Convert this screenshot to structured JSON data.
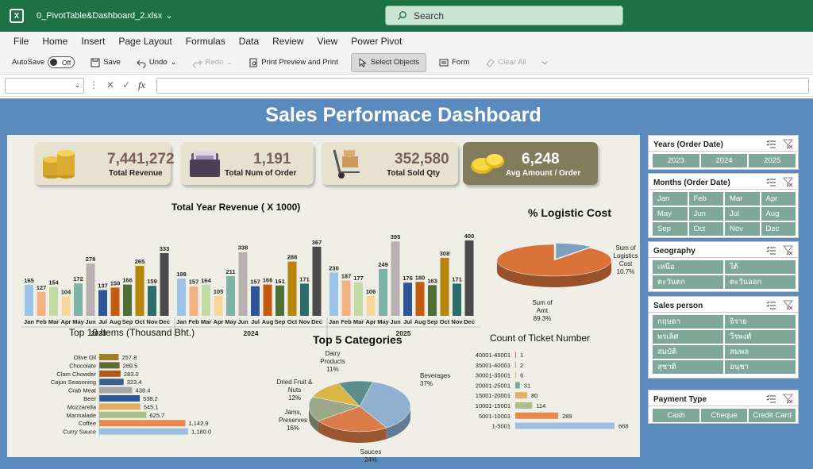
{
  "window": {
    "filename": "0_PivotTable&Dashboard_2.xlsx",
    "search_placeholder": "Search"
  },
  "menu": [
    "File",
    "Home",
    "Insert",
    "Page Layout",
    "Formulas",
    "Data",
    "Review",
    "View",
    "Power Pivot"
  ],
  "toolbar": {
    "autosave": "AutoSave",
    "autosave_state": "Off",
    "save": "Save",
    "undo": "Undo",
    "redo": "Redo",
    "print": "Print Preview and Print",
    "select_objects": "Select Objects",
    "form": "Form",
    "clear_all": "Clear All"
  },
  "formula_bar": {
    "fx": "fx"
  },
  "dashboard": {
    "title": "Sales Performace Dashboard",
    "kpis": [
      {
        "value": "7,441,272",
        "label": "Total Revenue",
        "icon": "coins-icon"
      },
      {
        "value": "1,191",
        "label": "Total Num of Order",
        "icon": "folder-icon"
      },
      {
        "value": "352,580",
        "label": "Total Sold Qty",
        "icon": "hand-truck-icon"
      },
      {
        "value": "6,248",
        "label": "Avg Amount / Order",
        "icon": "gold-coins-icon"
      }
    ],
    "colors": {
      "kpi_light": "#e7e2d0",
      "kpi_dark": "#827c5d",
      "slicer_button": "#7fa899",
      "dashboard_bg": "#5b8bbd",
      "canvas_bg": "#efefe8"
    }
  },
  "chart_data": [
    {
      "type": "bar",
      "title": "Total Year Revenue ( X 1000)",
      "groups": [
        "2023",
        "2024",
        "2025"
      ],
      "categories": [
        "Jan",
        "Feb",
        "Mar",
        "Apr",
        "May",
        "Jun",
        "Jul",
        "Aug",
        "Sep",
        "Oct",
        "Nov",
        "Dec"
      ],
      "series": [
        {
          "name": "2023",
          "values": [
            165,
            127,
            154,
            104,
            172,
            278,
            137,
            150,
            166,
            265,
            159,
            333
          ]
        },
        {
          "name": "2024",
          "values": [
            198,
            157,
            164,
            105,
            211,
            338,
            157,
            166,
            161,
            288,
            171,
            367
          ]
        },
        {
          "name": "2025",
          "values": [
            230,
            187,
            177,
            106,
            249,
            395,
            176,
            180,
            163,
            308,
            171,
            400
          ]
        }
      ],
      "month_colors": [
        "#9dc3e6",
        "#f4b183",
        "#c5d9a4",
        "#f6d99a",
        "#7fb3a6",
        "#b9b1b1",
        "#2f5597",
        "#c55a11",
        "#4e7036",
        "#b8860b",
        "#2e6e6a",
        "#4a4a4a"
      ]
    },
    {
      "type": "pie",
      "title": "% Logistic Cost",
      "slices": [
        {
          "label": "Sum of Logistics Cost",
          "value": 10.7,
          "display": "10.7%",
          "color": "#7f9fbf"
        },
        {
          "label": "Sum of Amt",
          "value": 89.3,
          "display": "89.3%",
          "color": "#d9733a"
        }
      ]
    },
    {
      "type": "bar",
      "orientation": "horizontal",
      "title": "Top 10 Items (Thousand Bht.)",
      "categories": [
        "Olive Oil",
        "Chocolate",
        "Clam Chowder",
        "Cajun Seasoning",
        "Crab Meat",
        "Beer",
        "Mozzarella",
        "Marmalade",
        "Coffee",
        "Curry Sauce"
      ],
      "values": [
        257.8,
        269.5,
        283.0,
        323.4,
        438.4,
        538.2,
        545.1,
        625.7,
        1142.9,
        1180.0
      ],
      "labels": [
        "257.8",
        "269.5",
        "283.0",
        "323.4",
        "438.4",
        "538.2",
        "545.1",
        "625.7",
        "1,142.9",
        "1,180.0"
      ],
      "colors": [
        "#a07d2b",
        "#5b6b3a",
        "#b15a18",
        "#3a5f8a",
        "#a6a6a6",
        "#2f5597",
        "#e0b060",
        "#a9c089",
        "#e8894f",
        "#9dbfe0"
      ]
    },
    {
      "type": "pie",
      "title": "Top 5 Categories",
      "slices": [
        {
          "label": "Beverages",
          "value": 37,
          "display": "37%",
          "color": "#8fb0cf"
        },
        {
          "label": "Sauces",
          "value": 24,
          "display": "24%",
          "color": "#d97c48"
        },
        {
          "label": "Jams, Preserves",
          "value": 16,
          "display": "16%",
          "color": "#9aa888"
        },
        {
          "label": "Dried Fruit & Nuts",
          "value": 12,
          "display": "12%",
          "color": "#d8b648"
        },
        {
          "label": "Dairy Products",
          "value": 11,
          "display": "11%",
          "color": "#5c8f8b"
        }
      ]
    },
    {
      "type": "bar",
      "orientation": "horizontal",
      "title": "Count of Ticket Number",
      "categories": [
        "40001-45001",
        "35001-40001",
        "30001-35001",
        "20001-25001",
        "15001-20001",
        "10001-15001",
        "5001-10001",
        "1-5001"
      ],
      "values": [
        1,
        2,
        6,
        31,
        80,
        114,
        289,
        668
      ],
      "colors": [
        "#d9733a",
        "#a6a6a6",
        "#d9b66a",
        "#7fa899",
        "#e0b060",
        "#a9c089",
        "#e8894f",
        "#9dbfe0"
      ]
    }
  ],
  "slicers": [
    {
      "title": "Years (Order Date)",
      "cols": 3,
      "items": [
        "2023",
        "2024",
        "2025"
      ]
    },
    {
      "title": "Months (Order Date)",
      "cols": 4,
      "items": [
        "Jan",
        "Feb",
        "Mar",
        "Apr",
        "May",
        "Jun",
        "Jul",
        "Aug",
        "Sep",
        "Oct",
        "Nov",
        "Dec"
      ]
    },
    {
      "title": "Geography",
      "cols": 2,
      "items": [
        "เหนือ",
        "ใต้",
        "ตะวันตก",
        "ตะวันออก"
      ]
    },
    {
      "title": "Sales person",
      "cols": 2,
      "items": [
        "กฤษดา",
        "จิราย",
        "พรเลิศ",
        "วีรพงศ์",
        "สมบัติ",
        "สมพล",
        "สุชาติ",
        "อนุชา"
      ]
    },
    {
      "title": "Payment Type",
      "cols": 3,
      "items": [
        "Cash",
        "Cheque",
        "Credit Card"
      ]
    }
  ]
}
